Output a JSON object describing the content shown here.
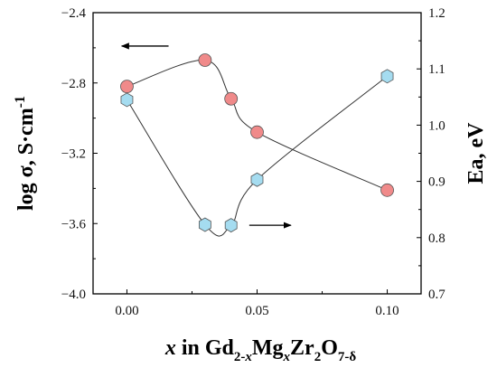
{
  "chart_data": {
    "type": "scatter",
    "x_axis": {
      "label_parts": [
        {
          "text": "x",
          "italic": true,
          "sub": false
        },
        {
          "text": " in Gd",
          "italic": false,
          "sub": false
        },
        {
          "text": "2-",
          "italic": false,
          "sub": true
        },
        {
          "text": "x",
          "italic": true,
          "sub": true
        },
        {
          "text": "Mg",
          "italic": false,
          "sub": false
        },
        {
          "text": "x",
          "italic": true,
          "sub": true
        },
        {
          "text": "Zr",
          "italic": false,
          "sub": false
        },
        {
          "text": "2",
          "italic": false,
          "sub": true
        },
        {
          "text": "O",
          "italic": false,
          "sub": false
        },
        {
          "text": "7-δ",
          "italic": false,
          "sub": true
        }
      ],
      "min": -0.013,
      "max": 0.113,
      "ticks": [
        0.0,
        0.05,
        0.1
      ],
      "tick_labels": [
        "0.00",
        "0.05",
        "0.10"
      ]
    },
    "y_left": {
      "label": "log σ, S·cm",
      "label_sup": "-1",
      "min": -4.0,
      "max": -2.4,
      "ticks": [
        -4.0,
        -3.6,
        -3.2,
        -2.8,
        -2.4
      ],
      "tick_labels": [
        "-4.0",
        "-3.6",
        "-3.2",
        "-2.8",
        "-2.4"
      ]
    },
    "y_right": {
      "label": "Ea, eV",
      "min": 0.7,
      "max": 1.2,
      "ticks": [
        0.7,
        0.8,
        0.9,
        1.0,
        1.1,
        1.2
      ],
      "tick_labels": [
        "0.7",
        "0.8",
        "0.9",
        "1.0",
        "1.1",
        "1.2"
      ]
    },
    "series": [
      {
        "axis": "left",
        "marker": "circle",
        "color": "#f08a8a",
        "x": [
          0.0,
          0.03,
          0.04,
          0.05,
          0.1
        ],
        "y": [
          -2.82,
          -2.67,
          -2.89,
          -3.08,
          -3.41
        ]
      },
      {
        "axis": "right",
        "marker": "hexagon",
        "color": "#a5dcf0",
        "x": [
          0.0,
          0.03,
          0.04,
          0.05,
          0.1
        ],
        "y": [
          1.045,
          0.823,
          0.822,
          0.903,
          1.087
        ]
      }
    ],
    "annotations": [
      {
        "type": "arrow",
        "direction": "left",
        "points_to": "left-axis"
      },
      {
        "type": "arrow",
        "direction": "right",
        "points_to": "right-axis"
      }
    ],
    "grid": false,
    "legend": "none"
  }
}
